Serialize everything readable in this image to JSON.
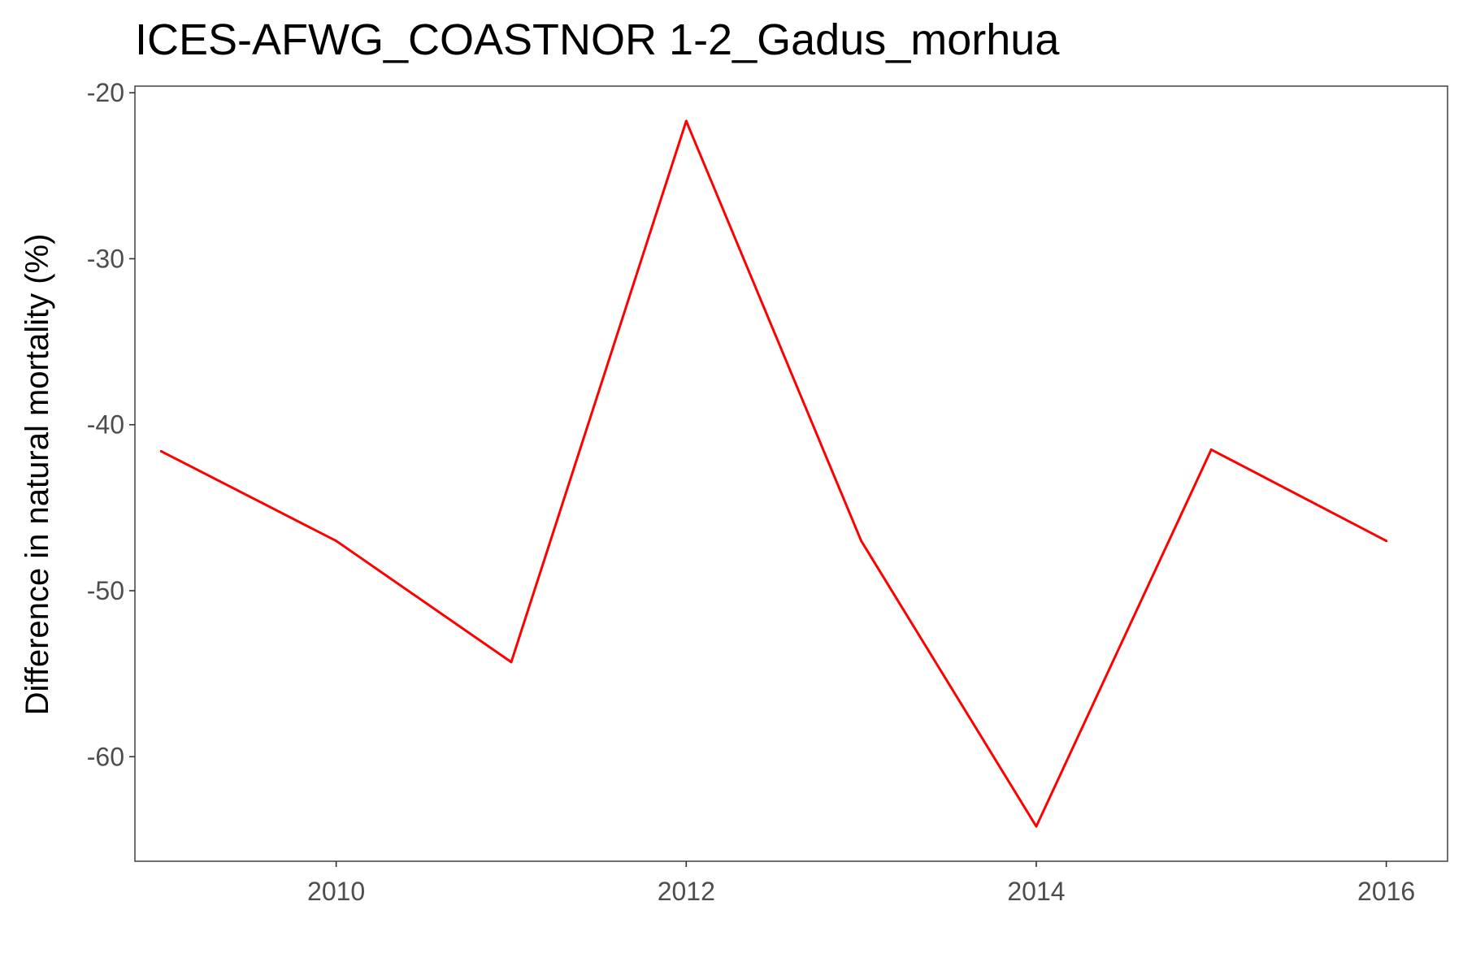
{
  "chart_data": {
    "type": "line",
    "title": "ICES-AFWG_COASTNOR 1-2_Gadus_morhua",
    "xlabel": "",
    "ylabel": "Difference in natural mortality (%)",
    "xlim": [
      2008.85,
      2016.35
    ],
    "ylim": [
      -66.3,
      -19.6
    ],
    "x_ticks": [
      2010,
      2012,
      2014,
      2016
    ],
    "y_ticks": [
      -20,
      -30,
      -40,
      -50,
      -60
    ],
    "grid": false,
    "series": [
      {
        "color": "#ff0000",
        "x": [
          2009,
          2010,
          2011,
          2012,
          2013,
          2014,
          2015,
          2016
        ],
        "y": [
          -41.6,
          -47.0,
          -54.3,
          -21.7,
          -47.0,
          -64.2,
          -41.5,
          -47.0
        ]
      }
    ]
  }
}
